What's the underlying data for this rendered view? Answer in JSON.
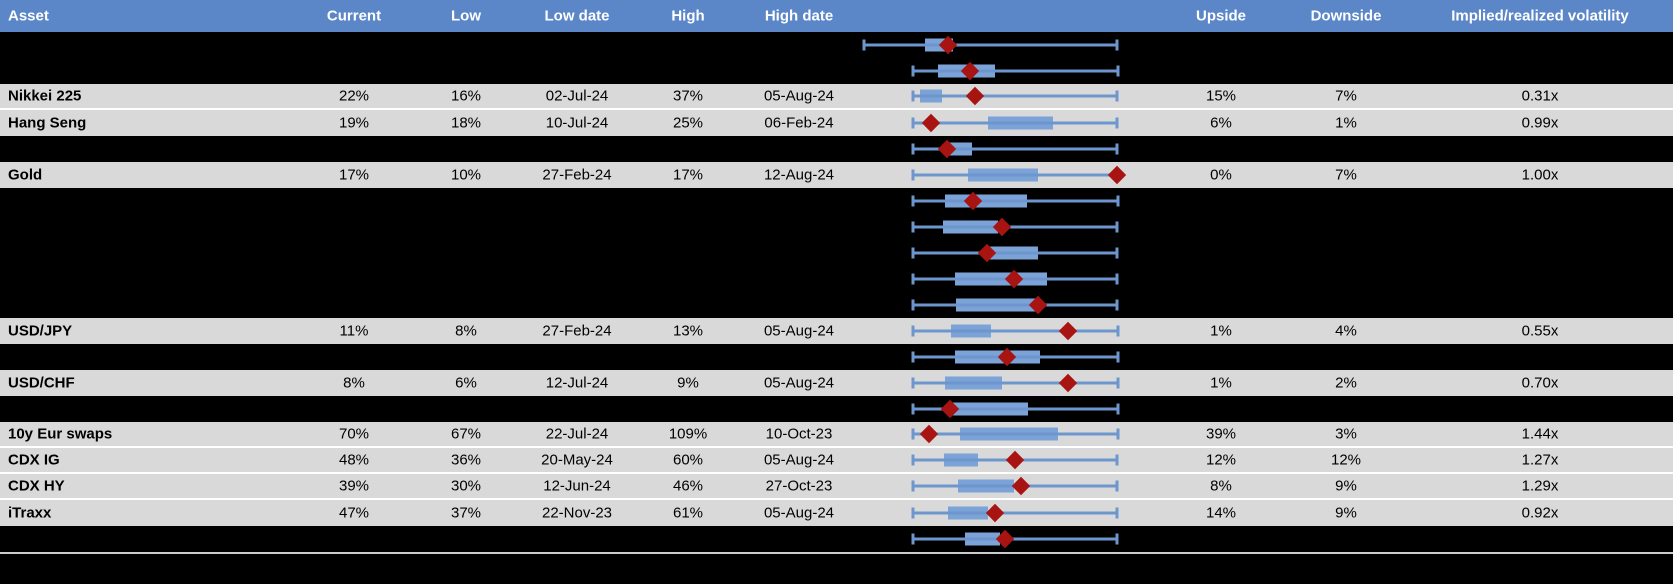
{
  "colors": {
    "header_bg": "#5b87c8",
    "header_text": "#ffffff",
    "row_gray": "#d9d9d9",
    "row_black": "#000000",
    "box_fill": "#7ca3d8",
    "whisker": "#6d96cc",
    "diamond": "#a81412",
    "separator": "#ffffff",
    "footer_line": "#cccccc"
  },
  "header": {
    "columns": [
      "Asset",
      "Current",
      "Low",
      "Low date",
      "High",
      "High date",
      "Upside",
      "Downside",
      "Implied/realized volatility"
    ]
  },
  "rows": [
    {
      "kind": "chart",
      "box": {
        "lo": 5.0,
        "hi": 95.4,
        "b0": 26.8,
        "b1": 36.8,
        "d": 35.0
      }
    },
    {
      "kind": "chart",
      "box": {
        "lo": 22.5,
        "hi": 95.7,
        "b0": 31.4,
        "b1": 51.8,
        "d": 43.0
      }
    },
    {
      "kind": "data",
      "sep": true,
      "asset": "Nikkei 225",
      "current": "22%",
      "low": "16%",
      "low_date": "02-Jul-24",
      "high": "37%",
      "high_date": "05-Aug-24",
      "upside": "15%",
      "downside": "7%",
      "vol": "0.31x",
      "box": {
        "lo": 22.5,
        "hi": 95.4,
        "b0": 25.0,
        "b1": 32.9,
        "d": 44.6
      }
    },
    {
      "kind": "data",
      "asset": "Hang Seng",
      "current": "19%",
      "low": "18%",
      "low_date": "10-Jul-24",
      "high": "25%",
      "high_date": "06-Feb-24",
      "upside": "6%",
      "downside": "1%",
      "vol": "0.99x",
      "box": {
        "lo": 22.5,
        "hi": 95.4,
        "b0": 49.3,
        "b1": 72.5,
        "d": 28.9
      }
    },
    {
      "kind": "chart",
      "box": {
        "lo": 22.5,
        "hi": 95.4,
        "b0": 35.0,
        "b1": 43.6,
        "d": 34.6
      }
    },
    {
      "kind": "data",
      "asset": "Gold",
      "current": "17%",
      "low": "10%",
      "low_date": "27-Feb-24",
      "high": "17%",
      "high_date": "12-Aug-24",
      "upside": "0%",
      "downside": "7%",
      "vol": "1.00x",
      "box": {
        "lo": 22.5,
        "hi": 95.4,
        "b0": 42.1,
        "b1": 67.1,
        "d": 95.4
      }
    },
    {
      "kind": "chart",
      "box": {
        "lo": 22.5,
        "hi": 95.7,
        "b0": 33.9,
        "b1": 63.2,
        "d": 43.9
      }
    },
    {
      "kind": "chart",
      "box": {
        "lo": 22.5,
        "hi": 95.4,
        "b0": 33.2,
        "b1": 52.9,
        "d": 54.3
      }
    },
    {
      "kind": "chart",
      "box": {
        "lo": 22.5,
        "hi": 95.4,
        "b0": 50.0,
        "b1": 67.1,
        "d": 48.9
      }
    },
    {
      "kind": "chart",
      "box": {
        "lo": 22.5,
        "hi": 95.4,
        "b0": 37.5,
        "b1": 70.4,
        "d": 58.6
      }
    },
    {
      "kind": "chart",
      "box": {
        "lo": 22.5,
        "hi": 95.4,
        "b0": 37.9,
        "b1": 67.9,
        "d": 67.1
      }
    },
    {
      "kind": "data",
      "asset": "USD/JPY",
      "current": "11%",
      "low": "8%",
      "low_date": "27-Feb-24",
      "high": "13%",
      "high_date": "05-Aug-24",
      "upside": "1%",
      "downside": "4%",
      "vol": "0.55x",
      "box": {
        "lo": 22.5,
        "hi": 95.7,
        "b0": 36.1,
        "b1": 50.4,
        "d": 77.9
      }
    },
    {
      "kind": "chart",
      "box": {
        "lo": 22.5,
        "hi": 95.7,
        "b0": 37.5,
        "b1": 67.9,
        "d": 56.1
      }
    },
    {
      "kind": "data",
      "asset": "USD/CHF",
      "current": "8%",
      "low": "6%",
      "low_date": "12-Jul-24",
      "high": "9%",
      "high_date": "05-Aug-24",
      "upside": "1%",
      "downside": "2%",
      "vol": "0.70x",
      "box": {
        "lo": 22.5,
        "hi": 95.7,
        "b0": 33.9,
        "b1": 54.3,
        "d": 77.9
      }
    },
    {
      "kind": "chart",
      "box": {
        "lo": 22.5,
        "hi": 95.7,
        "b0": 35.0,
        "b1": 63.6,
        "d": 35.7
      }
    },
    {
      "kind": "data",
      "sep": true,
      "asset": "10y Eur swaps",
      "current": "70%",
      "low": "67%",
      "low_date": "22-Jul-24",
      "high": "109%",
      "high_date": "10-Oct-23",
      "upside": "39%",
      "downside": "3%",
      "vol": "1.44x",
      "box": {
        "lo": 22.5,
        "hi": 95.7,
        "b0": 39.3,
        "b1": 74.3,
        "d": 28.2
      }
    },
    {
      "kind": "data",
      "sep": true,
      "asset": "CDX IG",
      "current": "48%",
      "low": "36%",
      "low_date": "20-May-24",
      "high": "60%",
      "high_date": "05-Aug-24",
      "upside": "12%",
      "downside": "12%",
      "vol": "1.27x",
      "box": {
        "lo": 22.5,
        "hi": 95.4,
        "b0": 33.6,
        "b1": 45.7,
        "d": 58.9
      }
    },
    {
      "kind": "data",
      "sep": true,
      "asset": "CDX HY",
      "current": "39%",
      "low": "30%",
      "low_date": "12-Jun-24",
      "high": "46%",
      "high_date": "27-Oct-23",
      "upside": "8%",
      "downside": "9%",
      "vol": "1.29x",
      "box": {
        "lo": 22.5,
        "hi": 95.4,
        "b0": 38.6,
        "b1": 58.6,
        "d": 61.1
      }
    },
    {
      "kind": "data",
      "asset": "iTraxx",
      "current": "47%",
      "low": "37%",
      "low_date": "22-Nov-23",
      "high": "61%",
      "high_date": "05-Aug-24",
      "upside": "14%",
      "downside": "9%",
      "vol": "0.92x",
      "box": {
        "lo": 22.5,
        "hi": 95.4,
        "b0": 35.0,
        "b1": 49.3,
        "d": 51.8
      }
    },
    {
      "kind": "chart",
      "box": {
        "lo": 22.5,
        "hi": 95.4,
        "b0": 41.1,
        "b1": 53.6,
        "d": 55.4
      }
    }
  ],
  "chart_data": {
    "type": "table",
    "title": "Implied volatility ranges by asset",
    "columns": [
      "Asset",
      "Current",
      "Low",
      "Low date",
      "High",
      "High date",
      "Upside",
      "Downside",
      "Implied/realized volatility"
    ],
    "rows": [
      [
        "Nikkei 225",
        "22%",
        "16%",
        "02-Jul-24",
        "37%",
        "05-Aug-24",
        "15%",
        "7%",
        "0.31x"
      ],
      [
        "Hang Seng",
        "19%",
        "18%",
        "10-Jul-24",
        "25%",
        "06-Feb-24",
        "6%",
        "1%",
        "0.99x"
      ],
      [
        "Gold",
        "17%",
        "10%",
        "27-Feb-24",
        "17%",
        "12-Aug-24",
        "0%",
        "7%",
        "1.00x"
      ],
      [
        "USD/JPY",
        "11%",
        "8%",
        "27-Feb-24",
        "13%",
        "05-Aug-24",
        "1%",
        "4%",
        "0.55x"
      ],
      [
        "USD/CHF",
        "8%",
        "6%",
        "12-Jul-24",
        "9%",
        "05-Aug-24",
        "1%",
        "2%",
        "0.70x"
      ],
      [
        "10y Eur swaps",
        "70%",
        "67%",
        "22-Jul-24",
        "109%",
        "10-Oct-23",
        "39%",
        "3%",
        "1.44x"
      ],
      [
        "CDX IG",
        "48%",
        "36%",
        "20-May-24",
        "60%",
        "05-Aug-24",
        "12%",
        "12%",
        "1.27x"
      ],
      [
        "CDX HY",
        "39%",
        "30%",
        "12-Jun-24",
        "46%",
        "27-Oct-23",
        "8%",
        "9%",
        "1.29x"
      ],
      [
        "iTraxx",
        "47%",
        "37%",
        "22-Nov-23",
        "61%",
        "05-Aug-24",
        "14%",
        "9%",
        "0.92x"
      ]
    ],
    "embedded_plot": "Each row contains a horizontal box-whisker sparkline (blue whisker with end caps, blue box) and a red diamond marking the current level; unlabeled black rows show only their box-whisker plot (labels redacted)"
  }
}
